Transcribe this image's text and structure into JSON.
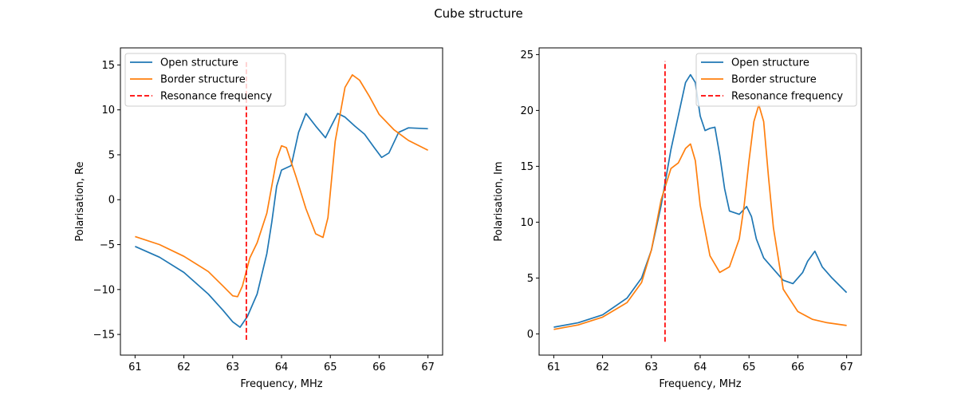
{
  "figure": {
    "suptitle": "Cube structure"
  },
  "chart_data": [
    {
      "type": "line",
      "xlabel": "Frequency, MHz",
      "ylabel": "Polarisation, Re",
      "xlim": [
        60.7,
        67.3
      ],
      "ylim": [
        -17.3,
        16.9
      ],
      "xticks": [
        61,
        62,
        63,
        64,
        65,
        66,
        67
      ],
      "yticks": [
        -15,
        -10,
        -5,
        0,
        5,
        10,
        15
      ],
      "legend_position": "top-left",
      "series": [
        {
          "name": "Open structure",
          "color": "#1f77b4",
          "style": "solid",
          "x": [
            61.0,
            61.5,
            62.0,
            62.5,
            62.8,
            63.0,
            63.15,
            63.3,
            63.5,
            63.7,
            63.8,
            63.9,
            64.0,
            64.2,
            64.35,
            64.5,
            64.7,
            64.9,
            65.0,
            65.15,
            65.3,
            65.5,
            65.7,
            65.9,
            66.05,
            66.2,
            66.4,
            66.6,
            67.0
          ],
          "y": [
            -5.2,
            -6.4,
            -8.1,
            -10.5,
            -12.3,
            -13.6,
            -14.2,
            -13.0,
            -10.5,
            -6.0,
            -2.5,
            1.5,
            3.3,
            3.8,
            7.5,
            9.6,
            8.2,
            6.9,
            8.0,
            9.6,
            9.2,
            8.2,
            7.3,
            5.8,
            4.7,
            5.2,
            7.5,
            8.0,
            7.9
          ]
        },
        {
          "name": "Border structure",
          "color": "#ff7f0e",
          "style": "solid",
          "x": [
            61.0,
            61.5,
            62.0,
            62.5,
            62.8,
            63.0,
            63.1,
            63.2,
            63.35,
            63.5,
            63.7,
            63.9,
            64.0,
            64.1,
            64.3,
            64.5,
            64.7,
            64.85,
            64.95,
            65.1,
            65.3,
            65.45,
            65.6,
            65.8,
            66.0,
            66.3,
            66.6,
            67.0
          ],
          "y": [
            -4.1,
            -5.0,
            -6.3,
            -8.0,
            -9.6,
            -10.7,
            -10.8,
            -9.6,
            -6.5,
            -4.8,
            -1.5,
            4.5,
            6.0,
            5.8,
            2.5,
            -1.0,
            -3.8,
            -4.2,
            -2.0,
            6.5,
            12.5,
            13.9,
            13.3,
            11.5,
            9.5,
            7.8,
            6.6,
            5.5
          ]
        },
        {
          "name": "Resonance frequency",
          "color": "#ff0000",
          "style": "dashed",
          "x": [
            63.28,
            63.28
          ],
          "y": [
            -15.6,
            15.5
          ]
        }
      ]
    },
    {
      "type": "line",
      "xlabel": "Frequency, MHz",
      "ylabel": "Polarisation, Im",
      "xlim": [
        60.7,
        67.3
      ],
      "ylim": [
        -1.9,
        25.6
      ],
      "xticks": [
        61,
        62,
        63,
        64,
        65,
        66,
        67
      ],
      "yticks": [
        0,
        5,
        10,
        15,
        20,
        25
      ],
      "legend_position": "top-right",
      "series": [
        {
          "name": "Open structure",
          "color": "#1f77b4",
          "style": "solid",
          "x": [
            61.0,
            61.5,
            62.0,
            62.5,
            62.8,
            63.0,
            63.2,
            63.4,
            63.6,
            63.7,
            63.8,
            63.9,
            64.0,
            64.1,
            64.2,
            64.3,
            64.4,
            64.5,
            64.6,
            64.8,
            64.95,
            65.05,
            65.15,
            65.3,
            65.5,
            65.7,
            65.9,
            66.1,
            66.2,
            66.35,
            66.5,
            66.7,
            67.0
          ],
          "y": [
            0.6,
            1.0,
            1.7,
            3.2,
            5.0,
            7.5,
            11.5,
            16.5,
            20.5,
            22.5,
            23.2,
            22.5,
            19.5,
            18.2,
            18.4,
            18.5,
            16.0,
            13.0,
            11.0,
            10.7,
            11.4,
            10.5,
            8.5,
            6.8,
            5.8,
            4.8,
            4.5,
            5.5,
            6.5,
            7.4,
            6.0,
            5.0,
            3.7
          ]
        },
        {
          "name": "Border structure",
          "color": "#ff7f0e",
          "style": "solid",
          "x": [
            61.0,
            61.5,
            62.0,
            62.5,
            62.8,
            63.0,
            63.2,
            63.4,
            63.55,
            63.7,
            63.8,
            63.9,
            64.0,
            64.2,
            64.4,
            64.6,
            64.8,
            64.9,
            65.0,
            65.1,
            65.2,
            65.3,
            65.4,
            65.5,
            65.7,
            66.0,
            66.3,
            66.6,
            67.0
          ],
          "y": [
            0.4,
            0.8,
            1.5,
            2.8,
            4.6,
            7.5,
            12.0,
            14.8,
            15.3,
            16.6,
            17.0,
            15.5,
            11.5,
            7.0,
            5.5,
            6.0,
            8.5,
            11.5,
            15.5,
            19.0,
            20.5,
            19.0,
            14.0,
            9.5,
            4.0,
            2.0,
            1.3,
            1.0,
            0.75
          ]
        },
        {
          "name": "Resonance frequency",
          "color": "#ff0000",
          "style": "dashed",
          "x": [
            63.28,
            63.28
          ],
          "y": [
            -0.7,
            24.4
          ]
        }
      ]
    }
  ]
}
